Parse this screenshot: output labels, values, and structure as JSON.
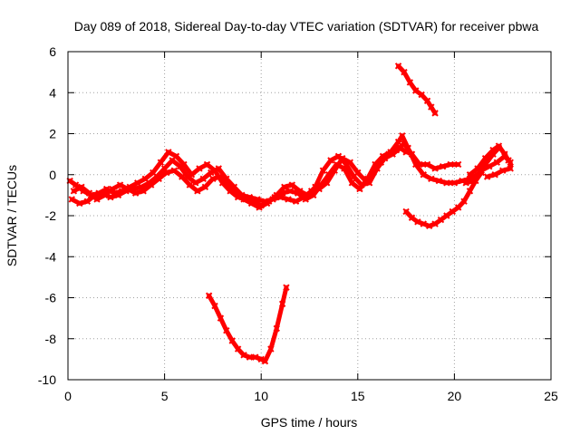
{
  "chart_data": {
    "type": "scatter",
    "title": "Day 089 of 2018, Sidereal Day-to-day VTEC variation (SDTVAR) for receiver pbwa",
    "xlabel": "GPS time / hours",
    "ylabel": "SDTVAR / TECUs",
    "xlim": [
      0,
      25
    ],
    "ylim": [
      -10,
      6
    ],
    "xticks": [
      0,
      5,
      10,
      15,
      20,
      25
    ],
    "yticks": [
      -10,
      -8,
      -6,
      -4,
      -2,
      0,
      2,
      4,
      6
    ],
    "xtick_labels": [
      "0",
      "5",
      "10",
      "15",
      "20",
      "25"
    ],
    "ytick_labels": [
      "-10",
      "-8",
      "-6",
      "-4",
      "-2",
      "0",
      "2",
      "4",
      "6"
    ],
    "grid": true,
    "marker_color": "#ff0000",
    "series": [
      {
        "name": "arc-main-a",
        "points": [
          [
            0.1,
            -0.3
          ],
          [
            0.4,
            -0.5
          ],
          [
            0.8,
            -0.8
          ],
          [
            1.2,
            -1.0
          ],
          [
            1.6,
            -0.9
          ],
          [
            2.0,
            -0.7
          ],
          [
            2.4,
            -0.9
          ],
          [
            2.8,
            -0.8
          ],
          [
            3.2,
            -0.6
          ],
          [
            3.6,
            -0.4
          ],
          [
            4.0,
            -0.2
          ],
          [
            4.4,
            0.1
          ],
          [
            4.8,
            0.6
          ],
          [
            5.2,
            1.1
          ],
          [
            5.6,
            0.9
          ],
          [
            6.0,
            0.5
          ],
          [
            6.4,
            0.0
          ],
          [
            6.8,
            0.3
          ],
          [
            7.2,
            0.5
          ],
          [
            7.6,
            0.2
          ],
          [
            8.0,
            -0.4
          ],
          [
            8.4,
            -0.8
          ],
          [
            8.8,
            -1.1
          ],
          [
            9.2,
            -1.2
          ],
          [
            9.6,
            -1.3
          ],
          [
            10.0,
            -1.5
          ],
          [
            10.4,
            -1.3
          ],
          [
            10.8,
            -1.0
          ],
          [
            11.2,
            -0.6
          ],
          [
            11.6,
            -0.5
          ],
          [
            12.0,
            -0.8
          ],
          [
            12.4,
            -1.0
          ],
          [
            12.8,
            -0.6
          ],
          [
            13.2,
            0.2
          ],
          [
            13.6,
            0.7
          ],
          [
            14.0,
            0.9
          ],
          [
            14.4,
            0.5
          ],
          [
            14.8,
            -0.1
          ],
          [
            15.2,
            -0.5
          ],
          [
            15.6,
            -0.4
          ],
          [
            16.0,
            0.3
          ],
          [
            16.4,
            0.8
          ],
          [
            16.8,
            1.0
          ],
          [
            17.2,
            1.3
          ],
          [
            17.5,
            1.1
          ]
        ]
      },
      {
        "name": "arc-main-b",
        "points": [
          [
            0.2,
            -1.2
          ],
          [
            0.6,
            -1.4
          ],
          [
            1.0,
            -1.3
          ],
          [
            1.4,
            -1.0
          ],
          [
            1.8,
            -0.9
          ],
          [
            2.2,
            -1.1
          ],
          [
            2.6,
            -1.0
          ],
          [
            3.0,
            -0.8
          ],
          [
            3.4,
            -0.7
          ],
          [
            3.8,
            -0.6
          ],
          [
            4.2,
            -0.4
          ],
          [
            4.6,
            -0.1
          ],
          [
            5.0,
            0.3
          ],
          [
            5.4,
            0.7
          ],
          [
            5.8,
            0.4
          ],
          [
            6.2,
            -0.1
          ],
          [
            6.6,
            -0.4
          ],
          [
            7.0,
            -0.2
          ],
          [
            7.4,
            0.1
          ],
          [
            7.8,
            0.3
          ],
          [
            8.2,
            -0.2
          ],
          [
            8.6,
            -0.6
          ],
          [
            9.0,
            -1.0
          ],
          [
            9.4,
            -1.1
          ],
          [
            9.8,
            -1.2
          ],
          [
            10.2,
            -1.3
          ],
          [
            10.6,
            -1.2
          ],
          [
            11.0,
            -1.1
          ],
          [
            11.4,
            -1.2
          ],
          [
            11.8,
            -1.3
          ],
          [
            12.2,
            -1.1
          ],
          [
            12.6,
            -0.8
          ],
          [
            13.0,
            -0.7
          ],
          [
            13.4,
            -0.4
          ],
          [
            13.8,
            0.2
          ],
          [
            14.2,
            0.8
          ],
          [
            14.6,
            0.6
          ],
          [
            15.0,
            0.1
          ],
          [
            15.4,
            -0.3
          ],
          [
            15.8,
            0.1
          ],
          [
            16.2,
            0.6
          ],
          [
            16.6,
            1.0
          ],
          [
            17.0,
            1.2
          ],
          [
            17.4,
            1.5
          ],
          [
            17.8,
            1.0
          ],
          [
            18.2,
            0.5
          ],
          [
            18.6,
            0.5
          ],
          [
            19.0,
            0.3
          ],
          [
            19.4,
            0.4
          ],
          [
            19.8,
            0.5
          ],
          [
            20.2,
            0.5
          ]
        ]
      },
      {
        "name": "arc-main-c",
        "points": [
          [
            0.3,
            -0.8
          ],
          [
            0.7,
            -0.6
          ],
          [
            1.1,
            -0.9
          ],
          [
            1.5,
            -1.2
          ],
          [
            1.9,
            -1.0
          ],
          [
            2.3,
            -0.7
          ],
          [
            2.7,
            -0.5
          ],
          [
            3.1,
            -0.7
          ],
          [
            3.5,
            -0.9
          ],
          [
            3.9,
            -0.8
          ],
          [
            4.3,
            -0.5
          ],
          [
            4.7,
            -0.2
          ],
          [
            5.1,
            0.1
          ],
          [
            5.5,
            0.2
          ],
          [
            5.9,
            -0.1
          ],
          [
            6.3,
            -0.5
          ],
          [
            6.7,
            -0.8
          ],
          [
            7.1,
            -0.6
          ],
          [
            7.5,
            -0.2
          ],
          [
            7.9,
            -0.1
          ],
          [
            8.3,
            -0.5
          ],
          [
            8.7,
            -0.9
          ],
          [
            9.1,
            -1.2
          ],
          [
            9.5,
            -1.4
          ],
          [
            9.9,
            -1.6
          ],
          [
            10.3,
            -1.4
          ],
          [
            10.7,
            -1.1
          ],
          [
            11.1,
            -0.9
          ],
          [
            11.5,
            -0.8
          ],
          [
            11.9,
            -0.9
          ],
          [
            12.3,
            -1.2
          ],
          [
            12.7,
            -1.0
          ],
          [
            13.1,
            -0.5
          ],
          [
            13.5,
            0.0
          ],
          [
            13.9,
            0.5
          ],
          [
            14.3,
            0.3
          ],
          [
            14.7,
            -0.4
          ],
          [
            15.1,
            -0.7
          ],
          [
            15.5,
            -0.2
          ],
          [
            15.9,
            0.5
          ],
          [
            16.3,
            0.9
          ],
          [
            16.7,
            1.1
          ],
          [
            17.1,
            1.6
          ],
          [
            17.3,
            1.9
          ],
          [
            17.6,
            1.3
          ],
          [
            18.0,
            0.5
          ],
          [
            18.4,
            0.0
          ],
          [
            18.8,
            -0.2
          ],
          [
            19.2,
            -0.3
          ],
          [
            19.6,
            -0.4
          ],
          [
            20.0,
            -0.4
          ],
          [
            20.4,
            -0.3
          ],
          [
            20.8,
            -0.2
          ],
          [
            21.2,
            0.0
          ],
          [
            21.6,
            0.5
          ],
          [
            22.0,
            1.0
          ],
          [
            22.3,
            1.3
          ]
        ]
      },
      {
        "name": "arc-right-tail",
        "points": [
          [
            20.6,
            -0.4
          ],
          [
            21.0,
            -0.3
          ],
          [
            21.4,
            0.2
          ],
          [
            21.8,
            0.4
          ],
          [
            22.2,
            0.6
          ],
          [
            22.6,
            0.9
          ],
          [
            22.9,
            0.6
          ],
          [
            22.9,
            0.3
          ],
          [
            22.5,
            0.2
          ],
          [
            22.1,
            0.0
          ],
          [
            21.7,
            -0.1
          ]
        ]
      },
      {
        "name": "arc-lower-dip",
        "points": [
          [
            7.3,
            -5.9
          ],
          [
            7.6,
            -6.4
          ],
          [
            7.9,
            -7.0
          ],
          [
            8.2,
            -7.6
          ],
          [
            8.5,
            -8.1
          ],
          [
            8.8,
            -8.5
          ],
          [
            9.1,
            -8.8
          ],
          [
            9.4,
            -8.9
          ],
          [
            9.7,
            -8.9
          ],
          [
            10.0,
            -9.0
          ],
          [
            10.2,
            -9.1
          ],
          [
            10.5,
            -8.5
          ],
          [
            10.8,
            -7.5
          ],
          [
            11.1,
            -6.3
          ],
          [
            11.3,
            -5.5
          ]
        ]
      },
      {
        "name": "arc-upper-decline",
        "points": [
          [
            17.1,
            5.3
          ],
          [
            17.4,
            5.0
          ],
          [
            17.7,
            4.5
          ],
          [
            18.0,
            4.1
          ],
          [
            18.3,
            3.9
          ],
          [
            18.6,
            3.6
          ],
          [
            18.8,
            3.3
          ],
          [
            19.0,
            3.0
          ]
        ]
      },
      {
        "name": "arc-mid-dip",
        "points": [
          [
            17.5,
            -1.8
          ],
          [
            17.8,
            -2.1
          ],
          [
            18.1,
            -2.3
          ],
          [
            18.4,
            -2.4
          ],
          [
            18.7,
            -2.5
          ],
          [
            19.0,
            -2.4
          ],
          [
            19.3,
            -2.2
          ],
          [
            19.6,
            -2.0
          ],
          [
            19.9,
            -1.8
          ],
          [
            20.2,
            -1.6
          ],
          [
            20.5,
            -1.3
          ],
          [
            20.8,
            -0.8
          ],
          [
            21.1,
            -0.3
          ],
          [
            21.4,
            0.1
          ]
        ]
      },
      {
        "name": "arc-right-upper",
        "points": [
          [
            20.8,
            0.0
          ],
          [
            21.2,
            0.3
          ],
          [
            21.6,
            0.8
          ],
          [
            22.0,
            1.2
          ],
          [
            22.3,
            1.4
          ],
          [
            22.6,
            1.0
          ],
          [
            22.8,
            0.7
          ]
        ]
      }
    ]
  }
}
